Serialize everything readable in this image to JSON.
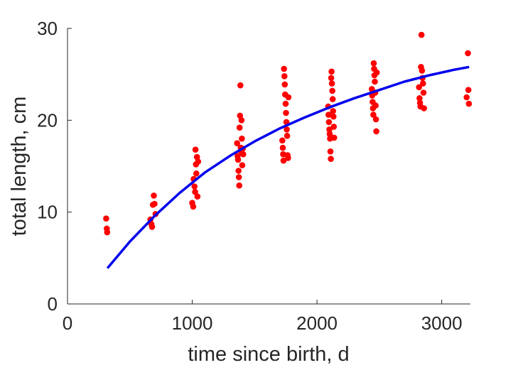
{
  "chart_data": {
    "type": "scatter",
    "title": "",
    "xlabel": "time since birth, d",
    "ylabel": "total length, cm",
    "xlim": [
      0,
      3230
    ],
    "ylim": [
      0,
      30
    ],
    "xticks": [
      0,
      1000,
      2000,
      3000
    ],
    "yticks": [
      0,
      10,
      20,
      30
    ],
    "grid": false,
    "colors": {
      "points": "#ff0000",
      "curve": "#0000ee",
      "axes": "#262626"
    },
    "series": [
      {
        "type": "scatter",
        "points": [
          [
            310,
            9.3
          ],
          [
            315,
            8.2
          ],
          [
            318,
            7.8
          ],
          [
            665,
            9.2
          ],
          [
            672,
            8.7
          ],
          [
            678,
            8.4
          ],
          [
            685,
            10.8
          ],
          [
            692,
            11.8
          ],
          [
            698,
            10.9
          ],
          [
            706,
            9.8
          ],
          [
            1000,
            11.0
          ],
          [
            1008,
            10.6
          ],
          [
            1012,
            13.6
          ],
          [
            1018,
            12.8
          ],
          [
            1023,
            12.2
          ],
          [
            1026,
            16.8
          ],
          [
            1030,
            15.2
          ],
          [
            1033,
            14.2
          ],
          [
            1038,
            16.0
          ],
          [
            1042,
            11.7
          ],
          [
            1047,
            15.5
          ],
          [
            1360,
            17.5
          ],
          [
            1364,
            16.1
          ],
          [
            1367,
            15.7
          ],
          [
            1371,
            14.5
          ],
          [
            1374,
            13.8
          ],
          [
            1377,
            12.9
          ],
          [
            1380,
            19.2
          ],
          [
            1383,
            20.5
          ],
          [
            1386,
            23.8
          ],
          [
            1389,
            17.0
          ],
          [
            1392,
            16.6
          ],
          [
            1395,
            20.0
          ],
          [
            1398,
            18.0
          ],
          [
            1401,
            15.1
          ],
          [
            1405,
            16.9
          ],
          [
            1409,
            16.3
          ],
          [
            1722,
            17.8
          ],
          [
            1726,
            17.0
          ],
          [
            1729,
            16.3
          ],
          [
            1732,
            15.6
          ],
          [
            1736,
            25.6
          ],
          [
            1739,
            24.8
          ],
          [
            1742,
            23.9
          ],
          [
            1745,
            22.8
          ],
          [
            1749,
            21.8
          ],
          [
            1752,
            20.8
          ],
          [
            1755,
            19.8
          ],
          [
            1758,
            19.0
          ],
          [
            1761,
            18.3
          ],
          [
            1764,
            16.2
          ],
          [
            1768,
            15.9
          ],
          [
            1771,
            22.5
          ]
        ]
      },
      {
        "type": "scatter",
        "points": [
          [
            2090,
            21.5
          ],
          [
            2093,
            20.6
          ],
          [
            2096,
            19.8
          ],
          [
            2099,
            19.0
          ],
          [
            2102,
            18.5
          ],
          [
            2105,
            18.0
          ],
          [
            2108,
            16.6
          ],
          [
            2111,
            15.8
          ],
          [
            2114,
            24.6
          ],
          [
            2117,
            25.3
          ],
          [
            2120,
            24.0
          ],
          [
            2123,
            23.2
          ],
          [
            2126,
            22.3
          ],
          [
            2129,
            21.0
          ],
          [
            2132,
            20.4
          ],
          [
            2135,
            19.3
          ],
          [
            2138,
            18.1
          ],
          [
            2440,
            23.4
          ],
          [
            2443,
            22.7
          ],
          [
            2446,
            22.0
          ],
          [
            2449,
            21.3
          ],
          [
            2452,
            20.6
          ],
          [
            2455,
            26.2
          ],
          [
            2458,
            25.6
          ],
          [
            2461,
            24.9
          ],
          [
            2464,
            24.2
          ],
          [
            2467,
            23.0
          ],
          [
            2470,
            21.6
          ],
          [
            2473,
            20.1
          ],
          [
            2476,
            18.8
          ],
          [
            2479,
            25.2
          ],
          [
            2818,
            23.6
          ],
          [
            2822,
            22.4
          ],
          [
            2826,
            21.9
          ],
          [
            2830,
            21.5
          ],
          [
            2834,
            25.8
          ],
          [
            2838,
            29.3
          ],
          [
            2842,
            25.4
          ],
          [
            2846,
            24.6
          ],
          [
            2850,
            24.0
          ],
          [
            2854,
            23.0
          ],
          [
            2858,
            21.3
          ],
          [
            3200,
            22.5
          ],
          [
            3210,
            27.3
          ],
          [
            3214,
            23.3
          ],
          [
            3218,
            21.8
          ]
        ]
      },
      {
        "type": "line",
        "points": [
          [
            320,
            3.9
          ],
          [
            500,
            6.8
          ],
          [
            700,
            9.6
          ],
          [
            900,
            12.1
          ],
          [
            1100,
            14.3
          ],
          [
            1300,
            16.1
          ],
          [
            1500,
            17.7
          ],
          [
            1700,
            19.1
          ],
          [
            1900,
            20.3
          ],
          [
            2100,
            21.4
          ],
          [
            2300,
            22.4
          ],
          [
            2500,
            23.3
          ],
          [
            2700,
            24.2
          ],
          [
            2900,
            24.9
          ],
          [
            3100,
            25.5
          ],
          [
            3220,
            25.8
          ]
        ]
      }
    ]
  }
}
